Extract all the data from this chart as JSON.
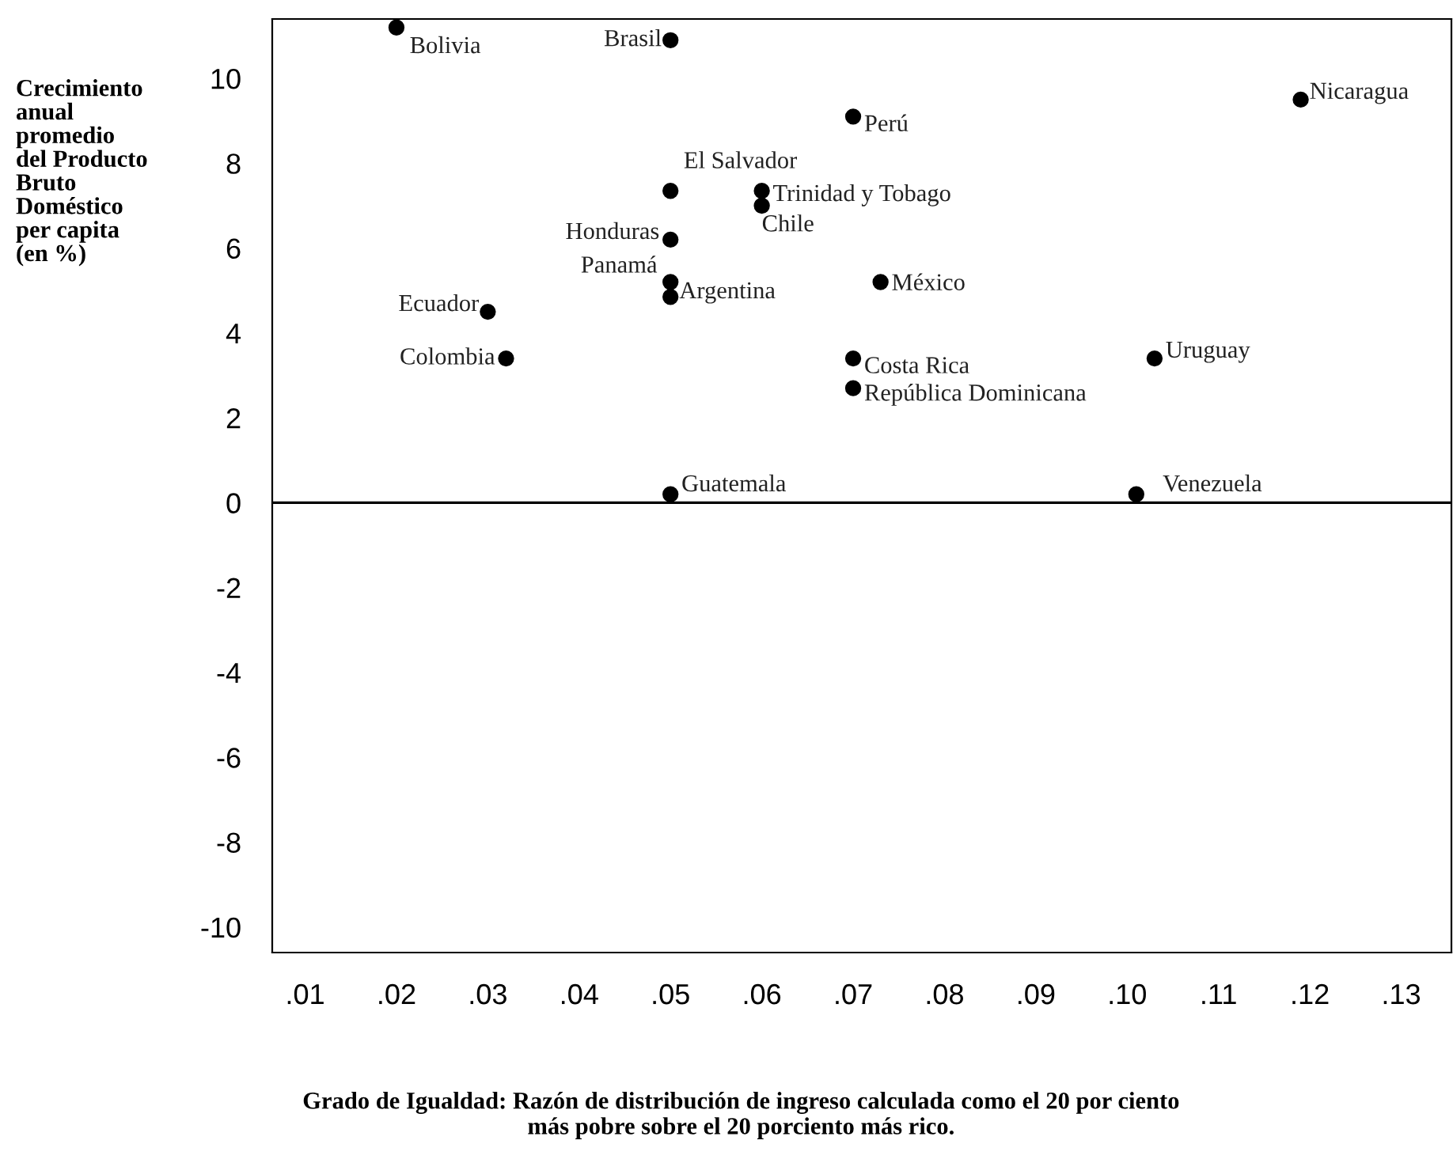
{
  "chart_data": {
    "type": "scatter",
    "xlabel": "Grado de Igualdad: Razón de distribución de ingreso calculada como el 20 por ciento\nmás pobre sobre el 20 porciento más rico.",
    "ylabel": "Crecimiento\nanual\npromedio\ndel Producto\nBruto\nDoméstico\nper capita\n(en %)",
    "series": [
      {
        "color": "#000000",
        "x": [
          0.02,
          0.05,
          0.07,
          0.119,
          0.05,
          0.06,
          0.06,
          0.05,
          0.05,
          0.05,
          0.073,
          0.03,
          0.032,
          0.07,
          0.07,
          0.103,
          0.05,
          0.101
        ],
        "values": [
          11.2,
          10.9,
          9.1,
          9.5,
          7.35,
          7.35,
          7.0,
          6.2,
          5.2,
          4.85,
          5.2,
          4.5,
          3.4,
          3.4,
          2.7,
          3.4,
          0.2,
          0.2
        ]
      }
    ],
    "annotations": [
      {
        "text": "Bolivia",
        "x": 0.02,
        "y": 11.2
      },
      {
        "text": "Brasil",
        "x": 0.05,
        "y": 10.9
      },
      {
        "text": "Perú",
        "x": 0.07,
        "y": 9.1
      },
      {
        "text": "Nicaragua",
        "x": 0.119,
        "y": 9.5
      },
      {
        "text": "El Salvador",
        "x": 0.05,
        "y": 7.35
      },
      {
        "text": "Trinidad y Tobago",
        "x": 0.06,
        "y": 7.35
      },
      {
        "text": "Chile",
        "x": 0.06,
        "y": 7.0
      },
      {
        "text": "Honduras",
        "x": 0.05,
        "y": 6.2
      },
      {
        "text": "Panamá",
        "x": 0.05,
        "y": 5.2
      },
      {
        "text": "Argentina",
        "x": 0.05,
        "y": 4.85
      },
      {
        "text": "México",
        "x": 0.073,
        "y": 5.2
      },
      {
        "text": "Ecuador",
        "x": 0.03,
        "y": 4.5
      },
      {
        "text": "Colombia",
        "x": 0.032,
        "y": 3.4
      },
      {
        "text": "Costa Rica",
        "x": 0.07,
        "y": 3.4
      },
      {
        "text": "República Dominicana",
        "x": 0.07,
        "y": 2.7
      },
      {
        "text": "Uruguay",
        "x": 0.103,
        "y": 3.4
      },
      {
        "text": "Guatemala",
        "x": 0.05,
        "y": 0.2
      },
      {
        "text": "Venezuela",
        "x": 0.101,
        "y": 0.2
      }
    ],
    "xlim": [
      0.0064,
      0.1355
    ],
    "ylim": [
      -10.6,
      11.4
    ],
    "xticks": [
      {
        "value": 0.01,
        "label": ".01"
      },
      {
        "value": 0.02,
        "label": ".02"
      },
      {
        "value": 0.03,
        "label": ".03"
      },
      {
        "value": 0.04,
        "label": ".04"
      },
      {
        "value": 0.05,
        "label": ".05"
      },
      {
        "value": 0.06,
        "label": ".06"
      },
      {
        "value": 0.07,
        "label": ".07"
      },
      {
        "value": 0.08,
        "label": ".08"
      },
      {
        "value": 0.09,
        "label": ".09"
      },
      {
        "value": 0.1,
        "label": ".10"
      },
      {
        "value": 0.11,
        "label": ".11"
      },
      {
        "value": 0.12,
        "label": ".12"
      },
      {
        "value": 0.13,
        "label": ".13"
      }
    ],
    "yticks": [
      10,
      8,
      6,
      4,
      2,
      0,
      -2,
      -4,
      -6,
      -8,
      -10
    ],
    "ref_lines": [
      {
        "axis": "y",
        "value": 0,
        "color": "#000000"
      }
    ],
    "marker": "circle",
    "grid": false,
    "legend": false
  }
}
